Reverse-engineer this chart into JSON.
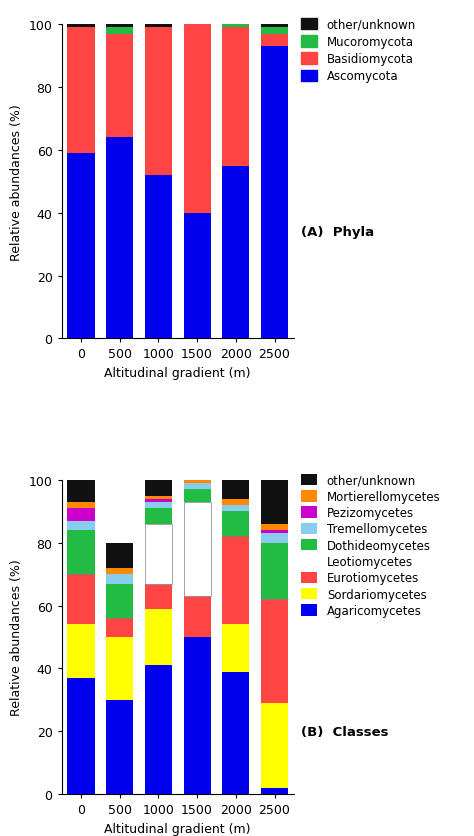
{
  "categories": [
    "0",
    "500",
    "1000",
    "1500",
    "2000",
    "2500"
  ],
  "phyla": {
    "Ascomycota": [
      59,
      64,
      52,
      40,
      55,
      93
    ],
    "Basidiomycota": [
      40,
      33,
      47,
      60,
      44,
      4
    ],
    "Mucoromycota": [
      0,
      2,
      0,
      0,
      1,
      2
    ],
    "other/unknown": [
      1,
      1,
      1,
      0,
      0,
      1
    ]
  },
  "phyla_colors": {
    "Ascomycota": "#0000EE",
    "Basidiomycota": "#FF4444",
    "Mucoromycota": "#22BB44",
    "other/unknown": "#111111"
  },
  "phyla_order": [
    "Ascomycota",
    "Basidiomycota",
    "Mucoromycota",
    "other/unknown"
  ],
  "classes": {
    "Agaricomycetes": [
      37,
      30,
      41,
      50,
      39,
      2
    ],
    "Sordariomycetes": [
      17,
      20,
      18,
      0,
      15,
      27
    ],
    "Eurotiomycetes": [
      16,
      6,
      8,
      13,
      28,
      33
    ],
    "Leotiomycetes": [
      0,
      0,
      19,
      30,
      0,
      0
    ],
    "Dothideomycetes": [
      14,
      11,
      5,
      4,
      8,
      18
    ],
    "Tremellomycetes": [
      3,
      3,
      2,
      2,
      2,
      3
    ],
    "Pezizomycetes": [
      4,
      0,
      1,
      0,
      0,
      1
    ],
    "Mortierellomycetes": [
      2,
      2,
      1,
      1,
      2,
      2
    ],
    "other/unknown": [
      7,
      8,
      5,
      0,
      6,
      14
    ]
  },
  "classes_colors": {
    "Agaricomycetes": "#0000EE",
    "Sordariomycetes": "#FFFF00",
    "Eurotiomycetes": "#FF4444",
    "Leotiomycetes": "#FFFFFF",
    "Dothideomycetes": "#22BB44",
    "Tremellomycetes": "#88CCEE",
    "Pezizomycetes": "#CC00CC",
    "Mortierellomycetes": "#FF8800",
    "other/unknown": "#111111"
  },
  "classes_order": [
    "Agaricomycetes",
    "Sordariomycetes",
    "Eurotiomycetes",
    "Leotiomycetes",
    "Dothideomycetes",
    "Tremellomycetes",
    "Pezizomycetes",
    "Mortierellomycetes",
    "other/unknown"
  ],
  "ylabel": "Relative abundances (%)",
  "xlabel": "Altitudinal gradient (m)",
  "label_A": "(A)  Phyla",
  "label_B": "(B)  Classes",
  "yticks": [
    0,
    20,
    40,
    60,
    80,
    100
  ],
  "bar_width": 0.7
}
